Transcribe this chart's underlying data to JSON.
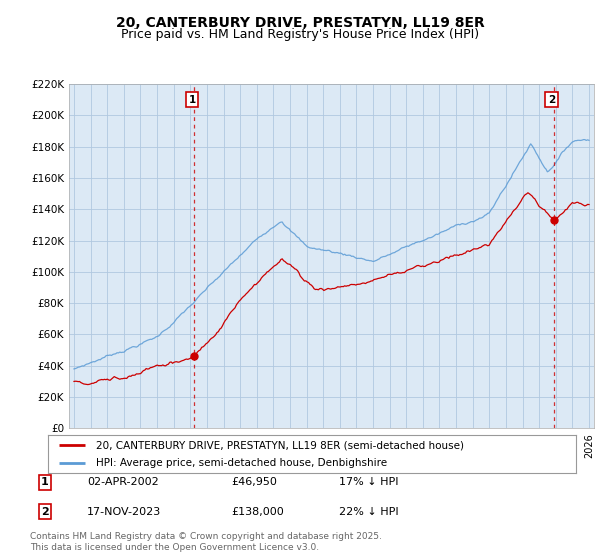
{
  "title": "20, CANTERBURY DRIVE, PRESTATYN, LL19 8ER",
  "subtitle": "Price paid vs. HM Land Registry's House Price Index (HPI)",
  "xlim": [
    1994.7,
    2026.3
  ],
  "ylim": [
    0,
    220000
  ],
  "yticks": [
    0,
    20000,
    40000,
    60000,
    80000,
    100000,
    120000,
    140000,
    160000,
    180000,
    200000,
    220000
  ],
  "ytick_labels": [
    "£0",
    "£20K",
    "£40K",
    "£60K",
    "£80K",
    "£100K",
    "£120K",
    "£140K",
    "£160K",
    "£180K",
    "£200K",
    "£220K"
  ],
  "hpi_color": "#5b9bd5",
  "price_color": "#cc0000",
  "marker1_year": 2002.25,
  "marker1_price": 46950,
  "marker2_year": 2023.88,
  "marker2_price": 138000,
  "vline_color": "#cc0000",
  "annotation1": "1",
  "annotation2": "2",
  "legend_line1": "20, CANTERBURY DRIVE, PRESTATYN, LL19 8ER (semi-detached house)",
  "legend_line2": "HPI: Average price, semi-detached house, Denbighshire",
  "note1_label": "1",
  "note1_date": "02-APR-2002",
  "note1_price": "£46,950",
  "note1_hpi": "17% ↓ HPI",
  "note2_label": "2",
  "note2_date": "17-NOV-2023",
  "note2_price": "£138,000",
  "note2_hpi": "22% ↓ HPI",
  "footnote": "Contains HM Land Registry data © Crown copyright and database right 2025.\nThis data is licensed under the Open Government Licence v3.0.",
  "bg_chart": "#dce9f5",
  "bg_figure": "#ffffff",
  "grid_color": "#b0c8e0",
  "title_fontsize": 10,
  "subtitle_fontsize": 9
}
